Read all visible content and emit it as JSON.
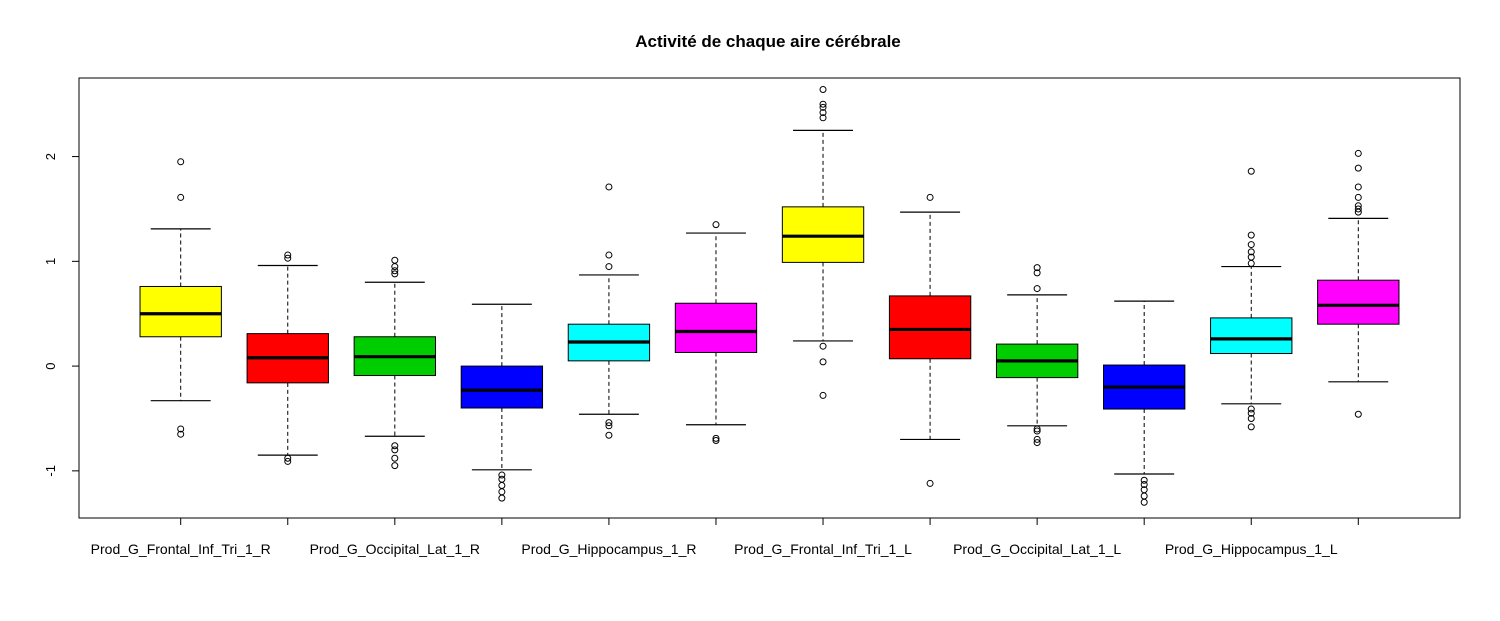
{
  "chart_data": {
    "type": "boxplot",
    "title": "Activité de chaque aire cérébrale",
    "xlabel": "",
    "ylabel": "",
    "ylim": [
      -1.45,
      2.75
    ],
    "y_ticks": [
      "-1",
      "0",
      "1",
      "2"
    ],
    "y_tick_values": [
      -1,
      0,
      1,
      2
    ],
    "grid": false,
    "categories": [
      "Prod_G_Frontal_Inf_Tri_1_R",
      "",
      "Prod_G_Occipital_Lat_1_R",
      "",
      "Prod_G_Hippocampus_1_R",
      "",
      "Prod_G_Frontal_Inf_Tri_1_L",
      "",
      "Prod_G_Occipital_Lat_1_L",
      "",
      "Prod_G_Hippocampus_1_L",
      ""
    ],
    "boxes": [
      {
        "q1": 0.28,
        "median": 0.5,
        "q3": 0.76,
        "whisker_low": -0.33,
        "whisker_high": 1.31,
        "outliers": [
          1.95,
          1.61,
          -0.6,
          -0.65
        ],
        "color": "#FFFF00"
      },
      {
        "q1": -0.16,
        "median": 0.08,
        "q3": 0.31,
        "whisker_low": -0.85,
        "whisker_high": 0.96,
        "outliers": [
          1.06,
          1.03,
          -0.88,
          -0.91
        ],
        "color": "#FF0000"
      },
      {
        "q1": -0.09,
        "median": 0.09,
        "q3": 0.28,
        "whisker_low": -0.67,
        "whisker_high": 0.8,
        "outliers": [
          1.01,
          0.95,
          0.91,
          0.88,
          -0.76,
          -0.8,
          -0.88,
          -0.95
        ],
        "color": "#00CD00"
      },
      {
        "q1": -0.4,
        "median": -0.23,
        "q3": 0.0,
        "whisker_low": -0.99,
        "whisker_high": 0.59,
        "outliers": [
          -1.04,
          -1.08,
          -1.14,
          -1.2,
          -1.26
        ],
        "color": "#0000FF"
      },
      {
        "q1": 0.05,
        "median": 0.23,
        "q3": 0.4,
        "whisker_low": -0.46,
        "whisker_high": 0.87,
        "outliers": [
          1.71,
          1.06,
          0.95,
          -0.54,
          -0.57,
          -0.66
        ],
        "color": "#00FFFF"
      },
      {
        "q1": 0.13,
        "median": 0.33,
        "q3": 0.6,
        "whisker_low": -0.56,
        "whisker_high": 1.27,
        "outliers": [
          1.35,
          -0.69,
          -0.71
        ],
        "color": "#FF00FF"
      },
      {
        "q1": 0.99,
        "median": 1.24,
        "q3": 1.52,
        "whisker_low": 0.24,
        "whisker_high": 2.25,
        "outliers": [
          2.64,
          2.5,
          2.47,
          2.42,
          2.37,
          0.19,
          0.04,
          -0.28
        ],
        "color": "#FFFF00"
      },
      {
        "q1": 0.07,
        "median": 0.35,
        "q3": 0.67,
        "whisker_low": -0.7,
        "whisker_high": 1.47,
        "outliers": [
          1.61,
          -1.12
        ],
        "color": "#FF0000"
      },
      {
        "q1": -0.11,
        "median": 0.05,
        "q3": 0.21,
        "whisker_low": -0.57,
        "whisker_high": 0.68,
        "outliers": [
          0.94,
          0.89,
          0.74,
          -0.6,
          -0.62,
          -0.7,
          -0.73
        ],
        "color": "#00CD00"
      },
      {
        "q1": -0.41,
        "median": -0.2,
        "q3": 0.01,
        "whisker_low": -1.03,
        "whisker_high": 0.62,
        "outliers": [
          -1.09,
          -1.13,
          -1.18,
          -1.24,
          -1.3
        ],
        "color": "#0000FF"
      },
      {
        "q1": 0.12,
        "median": 0.26,
        "q3": 0.46,
        "whisker_low": -0.36,
        "whisker_high": 0.95,
        "outliers": [
          1.86,
          1.25,
          1.16,
          1.09,
          1.04,
          0.98,
          -0.41,
          -0.45,
          -0.5,
          -0.58
        ],
        "color": "#00FFFF"
      },
      {
        "q1": 0.4,
        "median": 0.58,
        "q3": 0.82,
        "whisker_low": -0.15,
        "whisker_high": 1.41,
        "outliers": [
          2.03,
          1.89,
          1.71,
          1.61,
          1.53,
          1.5,
          1.47,
          -0.46
        ],
        "color": "#FF00FF"
      }
    ]
  }
}
